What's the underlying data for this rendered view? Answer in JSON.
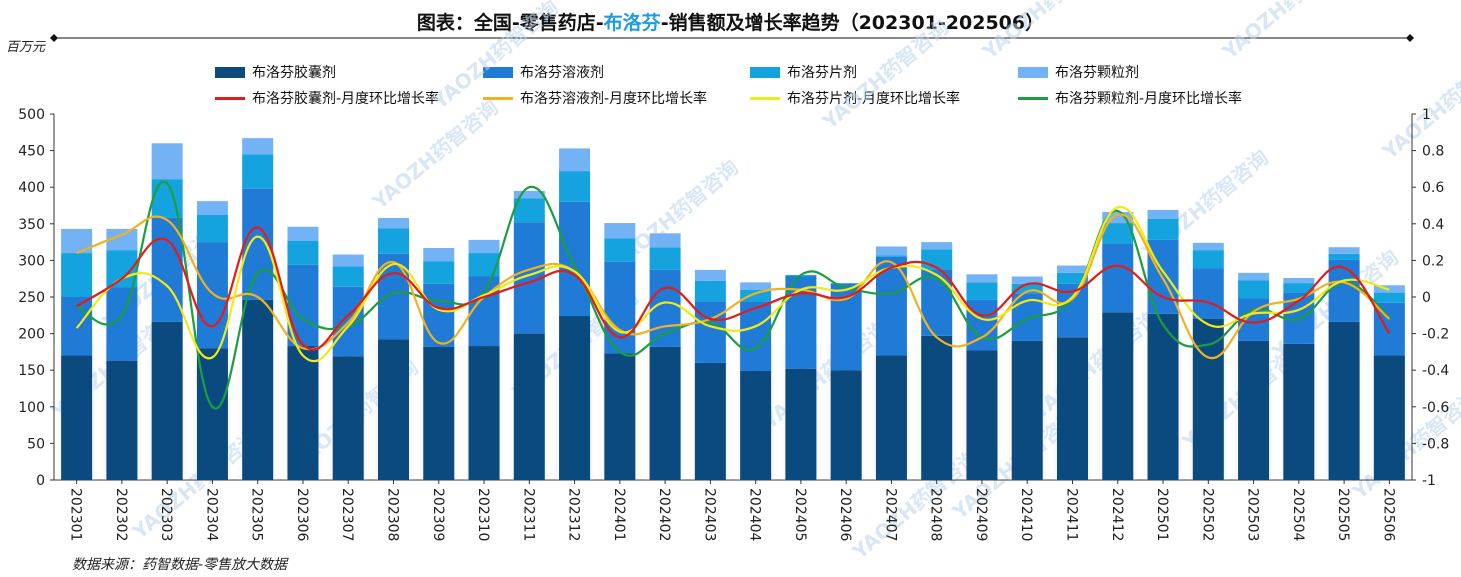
{
  "title": {
    "prefix": "图表：全国-零售药店-",
    "highlight": "布洛芬",
    "suffix": "-销售额及增长率趋势（202301-202506）"
  },
  "unit_label": "百万元",
  "source": "数据来源：药智数据-零售放大数据",
  "watermark": "YAOZH药智咨询",
  "colors": {
    "capsule": "#0a4a7e",
    "liquid": "#1f7bd6",
    "tablet": "#14a3de",
    "granule": "#73b3f5",
    "capsule_rate": "#e31b1b",
    "liquid_rate": "#f0b21f",
    "tablet_rate": "#f2ea16",
    "granule_rate": "#1c9e3f"
  },
  "chart_data": {
    "type": "bar",
    "stacked": true,
    "title": "图表：全国-零售药店-布洛芬-销售额及增长率趋势（202301-202506）",
    "ylabel": "百万元",
    "ylim": [
      0,
      500
    ],
    "y_ticks": [
      0,
      50,
      100,
      150,
      200,
      250,
      300,
      350,
      400,
      450,
      500
    ],
    "y2lim": [
      -1,
      1
    ],
    "y2_ticks": [
      -1,
      -0.8,
      -0.6,
      -0.4,
      -0.2,
      0,
      0.2,
      0.4,
      0.6,
      0.8,
      1
    ],
    "categories": [
      "202301",
      "202302",
      "202303",
      "202304",
      "202305",
      "202306",
      "202307",
      "202308",
      "202309",
      "202310",
      "202311",
      "202312",
      "202401",
      "202402",
      "202403",
      "202404",
      "202405",
      "202406",
      "202407",
      "202408",
      "202409",
      "202410",
      "202411",
      "202412",
      "202501",
      "202502",
      "202503",
      "202504",
      "202505",
      "202506"
    ],
    "series": [
      {
        "name": "布洛芬胶囊剂",
        "type": "bar",
        "values": [
          170,
          163,
          216,
          180,
          246,
          183,
          169,
          192,
          182,
          183,
          200,
          224,
          173,
          182,
          160,
          149,
          152,
          150,
          170,
          197,
          177,
          190,
          195,
          229,
          227,
          220,
          190,
          186,
          216,
          170
        ]
      },
      {
        "name": "布洛芬溶液剂",
        "type": "bar",
        "values": [
          80,
          100,
          142,
          145,
          152,
          111,
          95,
          117,
          86,
          95,
          152,
          156,
          125,
          105,
          84,
          95,
          126,
          118,
          135,
          91,
          69,
          65,
          73,
          94,
          101,
          69,
          58,
          70,
          85,
          72
        ]
      },
      {
        "name": "布洛芬片剂",
        "type": "bar",
        "values": [
          60,
          51,
          53,
          37,
          47,
          33,
          28,
          35,
          31,
          32,
          33,
          42,
          32,
          31,
          28,
          16,
          2,
          1,
          2,
          27,
          24,
          13,
          15,
          28,
          29,
          25,
          25,
          13,
          8,
          14
        ]
      },
      {
        "name": "布洛芬颗粒剂",
        "type": "bar",
        "values": [
          33,
          29,
          49,
          19,
          22,
          19,
          16,
          14,
          18,
          18,
          10,
          31,
          21,
          19,
          15,
          10,
          0,
          0,
          12,
          10,
          11,
          10,
          10,
          15,
          12,
          10,
          10,
          7,
          9,
          10
        ]
      },
      {
        "name": "布洛芬胶囊剂-月度环比增长率",
        "type": "line",
        "axis": "right",
        "values": [
          -0.05,
          0.1,
          0.31,
          -0.16,
          0.38,
          -0.26,
          -0.1,
          0.13,
          -0.06,
          0.0,
          0.08,
          0.12,
          -0.22,
          0.05,
          -0.12,
          -0.06,
          0.02,
          0.0,
          0.16,
          0.16,
          -0.1,
          0.07,
          0.03,
          0.17,
          0.0,
          -0.03,
          -0.14,
          -0.02,
          0.16,
          -0.2
        ]
      },
      {
        "name": "布洛芬溶液剂-月度环比增长率",
        "type": "line",
        "axis": "right",
        "values": [
          0.24,
          0.34,
          0.42,
          0.02,
          0.0,
          -0.28,
          -0.14,
          0.19,
          -0.25,
          0.0,
          0.15,
          0.14,
          -0.18,
          -0.16,
          -0.12,
          0.02,
          0.04,
          -0.01,
          0.19,
          -0.22,
          -0.22,
          0.03,
          -0.01,
          0.45,
          0.1,
          -0.33,
          -0.08,
          -0.01,
          0.08,
          -0.12
        ]
      },
      {
        "name": "布洛芬片剂-月度环比增长率",
        "type": "line",
        "axis": "right",
        "values": [
          -0.17,
          0.1,
          0.06,
          -0.33,
          0.33,
          -0.32,
          -0.16,
          0.18,
          -0.07,
          0.01,
          0.12,
          0.14,
          -0.19,
          -0.03,
          -0.16,
          -0.16,
          0.04,
          0.04,
          0.16,
          0.12,
          -0.12,
          -0.02,
          0.0,
          0.49,
          0.14,
          -0.15,
          -0.09,
          -0.07,
          0.09,
          0.04
        ]
      },
      {
        "name": "布洛芬颗粒剂-月度环比增长率",
        "type": "line",
        "axis": "right",
        "values": [
          -0.05,
          -0.1,
          0.62,
          -0.6,
          0.13,
          -0.12,
          -0.16,
          0.02,
          -0.02,
          0.03,
          0.6,
          0.17,
          -0.3,
          -0.2,
          -0.14,
          -0.28,
          0.12,
          0.05,
          0.02,
          0.1,
          -0.22,
          -0.12,
          -0.01,
          0.47,
          -0.15,
          -0.26,
          -0.07,
          -0.12,
          0.08,
          -0.11
        ]
      }
    ],
    "legend": [
      "布洛芬胶囊剂",
      "布洛芬溶液剂",
      "布洛芬片剂",
      "布洛芬颗粒剂",
      "布洛芬胶囊剂-月度环比增长率",
      "布洛芬溶液剂-月度环比增长率",
      "布洛芬片剂-月度环比增长率",
      "布洛芬颗粒剂-月度环比增长率"
    ],
    "legend_position": "top",
    "grid": false
  }
}
